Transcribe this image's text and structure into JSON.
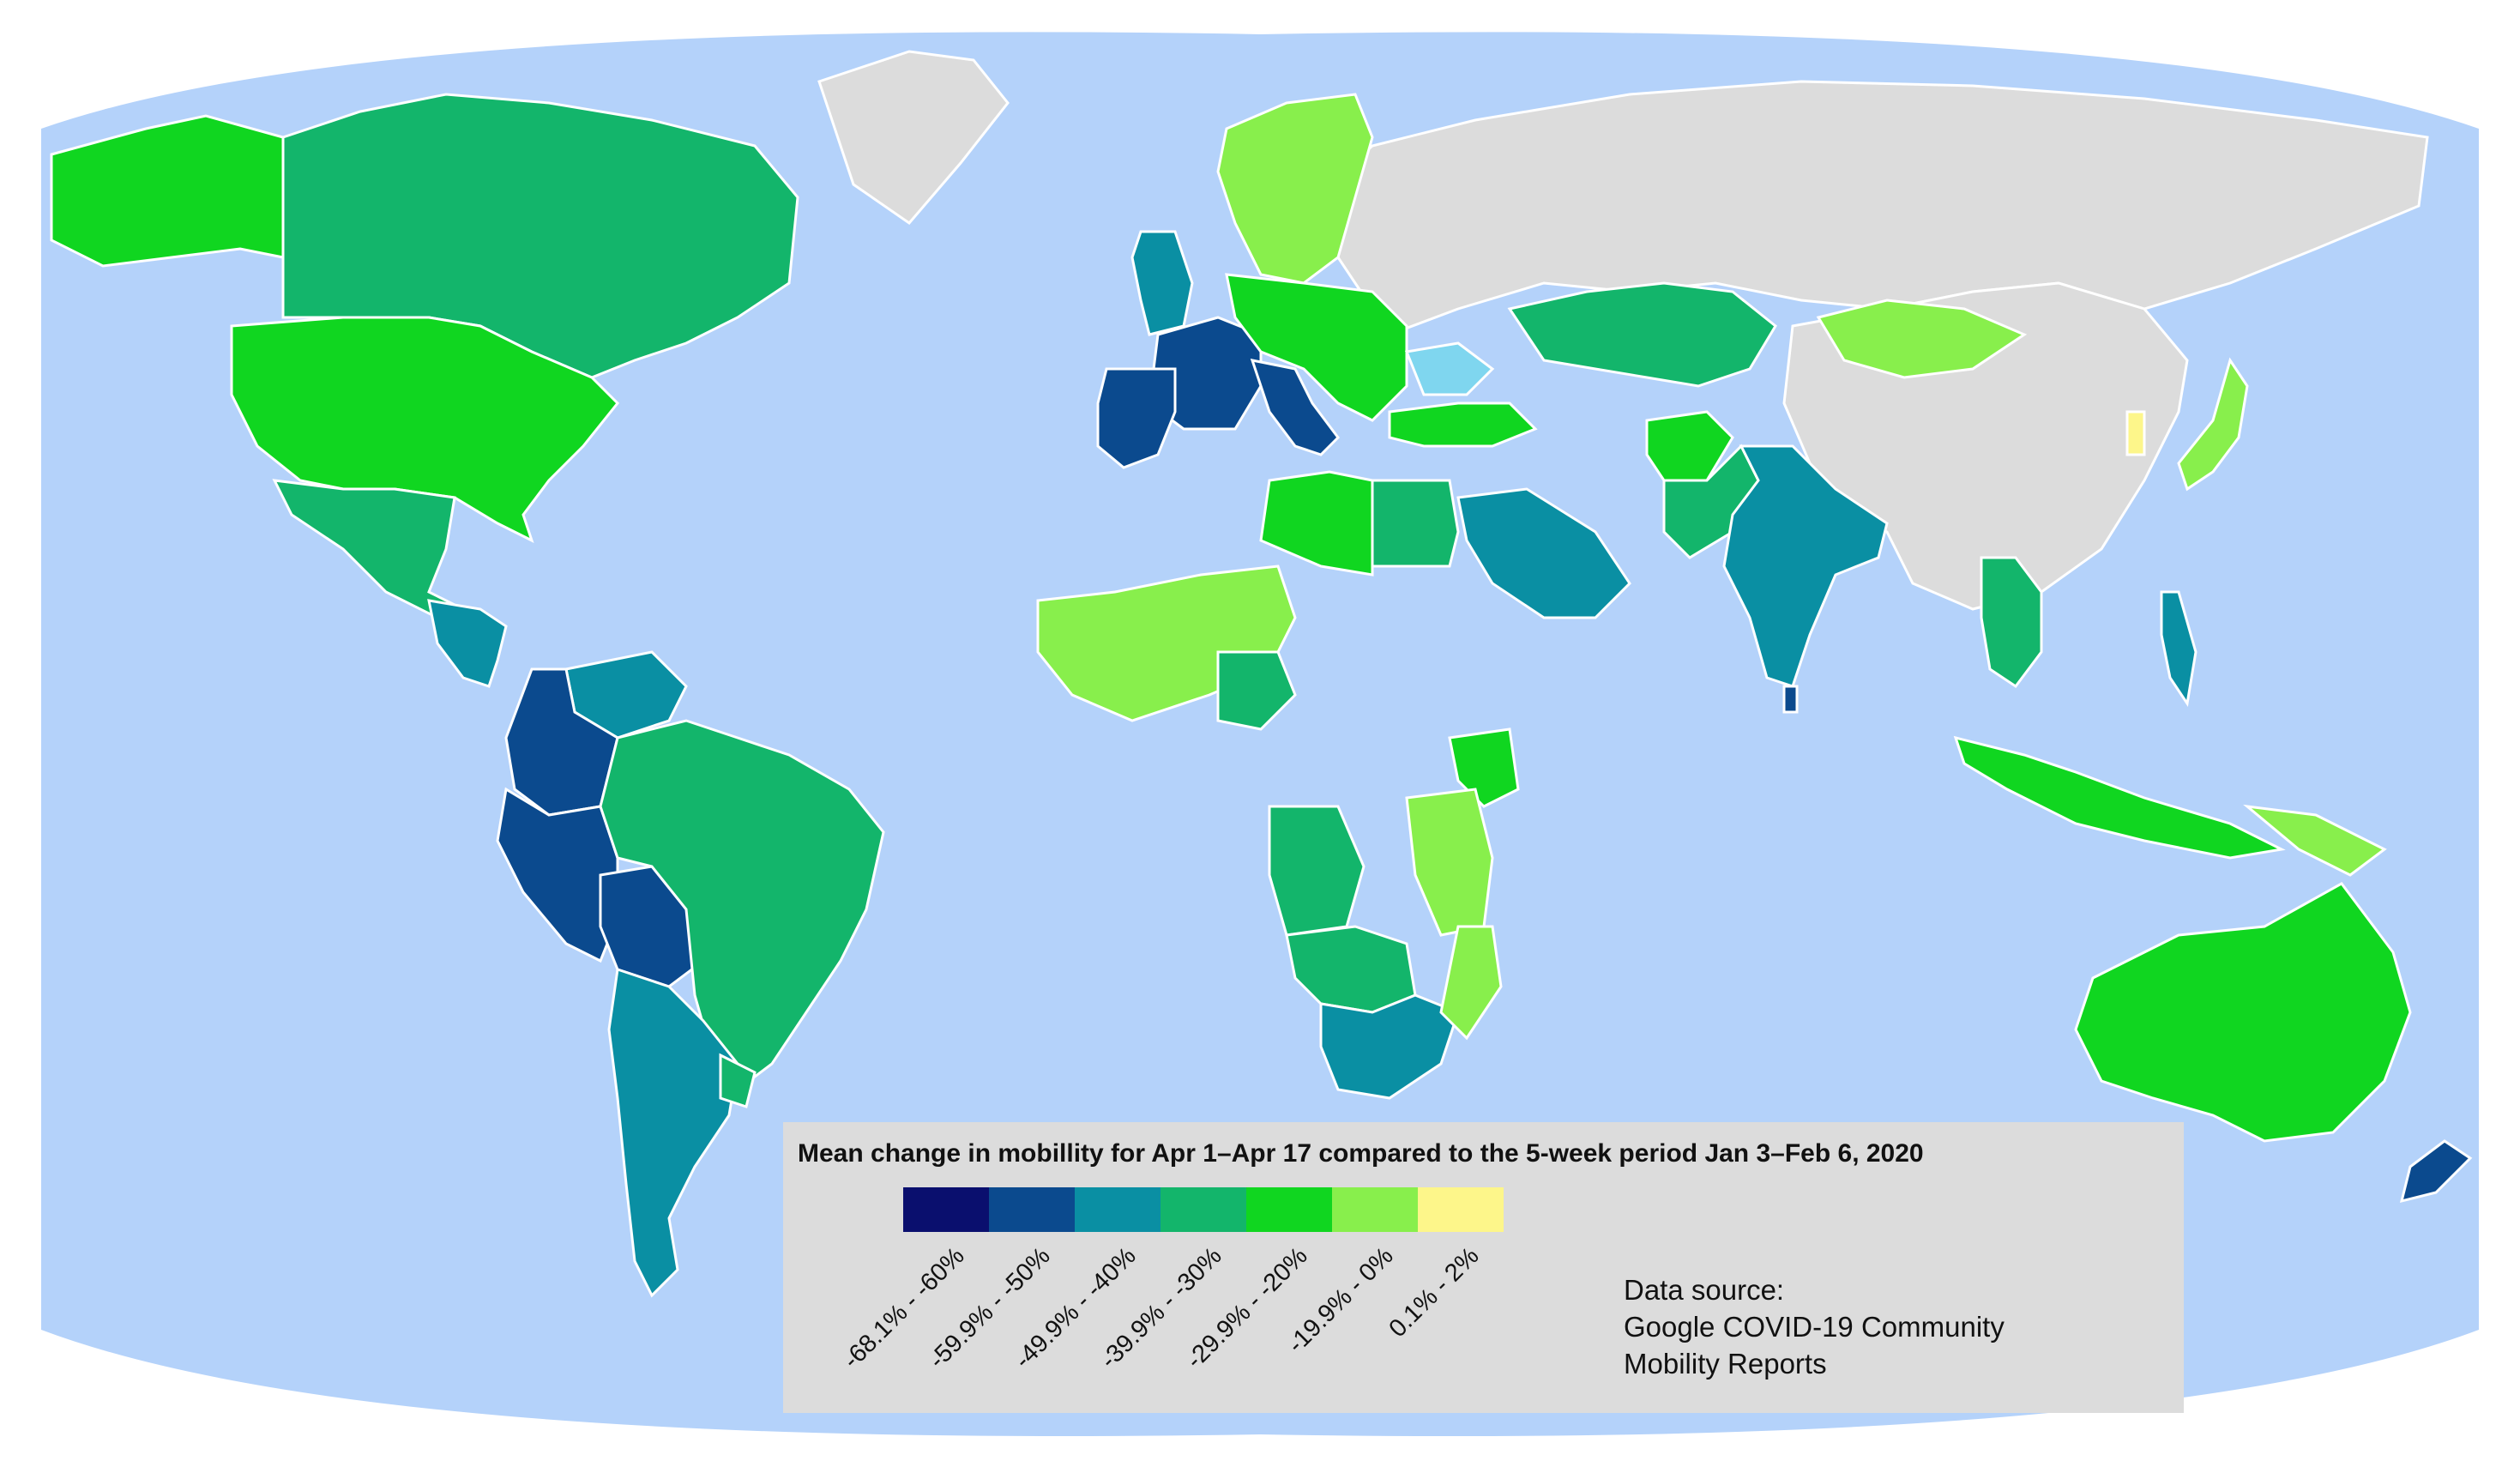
{
  "colors": {
    "ocean": "#b4d2fa",
    "no_data": "#dcdcdc",
    "border": "#ffffff"
  },
  "legend": {
    "title": "Mean change in mobillity for Apr 1–Apr 17 compared to the 5-week period Jan 3–Feb 6, 2020",
    "classes": [
      {
        "label": "-68.1% - -60%",
        "color": "#0a0f6e"
      },
      {
        "label": "-59.9% - -50%",
        "color": "#0b4a8e"
      },
      {
        "label": "-49.9% - -40%",
        "color": "#0a8fa3"
      },
      {
        "label": "-39.9% - -30%",
        "color": "#13b56b"
      },
      {
        "label": "-29.9% - -20%",
        "color": "#10d620"
      },
      {
        "label": "-19.9% - 0%",
        "color": "#88ef4c"
      },
      {
        "label": "0.1% - 2%",
        "color": "#fdf68a"
      }
    ],
    "source_lines": [
      "Data source:",
      "Google COVID-19 Community",
      "Mobility Reports"
    ]
  },
  "regions": [
    {
      "id": "greenland",
      "class": "none"
    },
    {
      "id": "russia",
      "class": "none"
    },
    {
      "id": "china",
      "class": "none"
    },
    {
      "id": "alaska",
      "class": "-29.9% - -20%"
    },
    {
      "id": "canada",
      "class": "-39.9% - -30%"
    },
    {
      "id": "united-states",
      "class": "-29.9% - -20%"
    },
    {
      "id": "mexico",
      "class": "-39.9% - -30%"
    },
    {
      "id": "central-america",
      "class": "-49.9% - -40%"
    },
    {
      "id": "venezuela",
      "class": "-49.9% - -40%"
    },
    {
      "id": "colombia-ecuador",
      "class": "-59.9% - -50%"
    },
    {
      "id": "peru",
      "class": "-59.9% - -50%"
    },
    {
      "id": "bolivia",
      "class": "-59.9% - -50%"
    },
    {
      "id": "brazil",
      "class": "-39.9% - -30%"
    },
    {
      "id": "argentina-chile",
      "class": "-49.9% - -40%"
    },
    {
      "id": "uruguay",
      "class": "-39.9% - -30%"
    },
    {
      "id": "scandinavia",
      "class": "-19.9% - 0%"
    },
    {
      "id": "united-kingdom",
      "class": "-49.9% - -40%"
    },
    {
      "id": "france",
      "class": "-59.9% - -50%"
    },
    {
      "id": "spain",
      "class": "-59.9% - -50%"
    },
    {
      "id": "italy",
      "class": "-59.9% - -50%"
    },
    {
      "id": "central-europe",
      "class": "-29.9% - -20%"
    },
    {
      "id": "turkey",
      "class": "-29.9% - -20%"
    },
    {
      "id": "black-sea",
      "class": "water"
    },
    {
      "id": "kazakhstan",
      "class": "-39.9% - -30%"
    },
    {
      "id": "mongolia",
      "class": "-19.9% - 0%"
    },
    {
      "id": "japan",
      "class": "-19.9% - 0%"
    },
    {
      "id": "south-korea",
      "class": "0.1% - 2%"
    },
    {
      "id": "libya",
      "class": "-29.9% - -20%"
    },
    {
      "id": "egypt",
      "class": "-39.9% - -30%"
    },
    {
      "id": "saudi-arabia",
      "class": "-49.9% - -40%"
    },
    {
      "id": "afghanistan",
      "class": "-29.9% - -20%"
    },
    {
      "id": "pakistan",
      "class": "-39.9% - -30%"
    },
    {
      "id": "india",
      "class": "-49.9% - -40%"
    },
    {
      "id": "sri-lanka",
      "class": "-59.9% - -50%"
    },
    {
      "id": "indochina",
      "class": "-39.9% - -30%"
    },
    {
      "id": "philippines",
      "class": "-49.9% - -40%"
    },
    {
      "id": "indonesia",
      "class": "-29.9% - -20%"
    },
    {
      "id": "papua-new-guinea",
      "class": "-19.9% - 0%"
    },
    {
      "id": "west-africa",
      "class": "-19.9% - 0%"
    },
    {
      "id": "nigeria",
      "class": "-39.9% - -30%"
    },
    {
      "id": "kenya",
      "class": "-29.9% - -20%"
    },
    {
      "id": "east-africa",
      "class": "-19.9% - 0%"
    },
    {
      "id": "angola",
      "class": "-39.9% - -30%"
    },
    {
      "id": "southern-africa",
      "class": "-39.9% - -30%"
    },
    {
      "id": "south-africa",
      "class": "-49.9% - -40%"
    },
    {
      "id": "mozambique",
      "class": "-19.9% - 0%"
    },
    {
      "id": "australia",
      "class": "-29.9% - -20%"
    },
    {
      "id": "new-zealand",
      "class": "-59.9% - -50%"
    }
  ]
}
